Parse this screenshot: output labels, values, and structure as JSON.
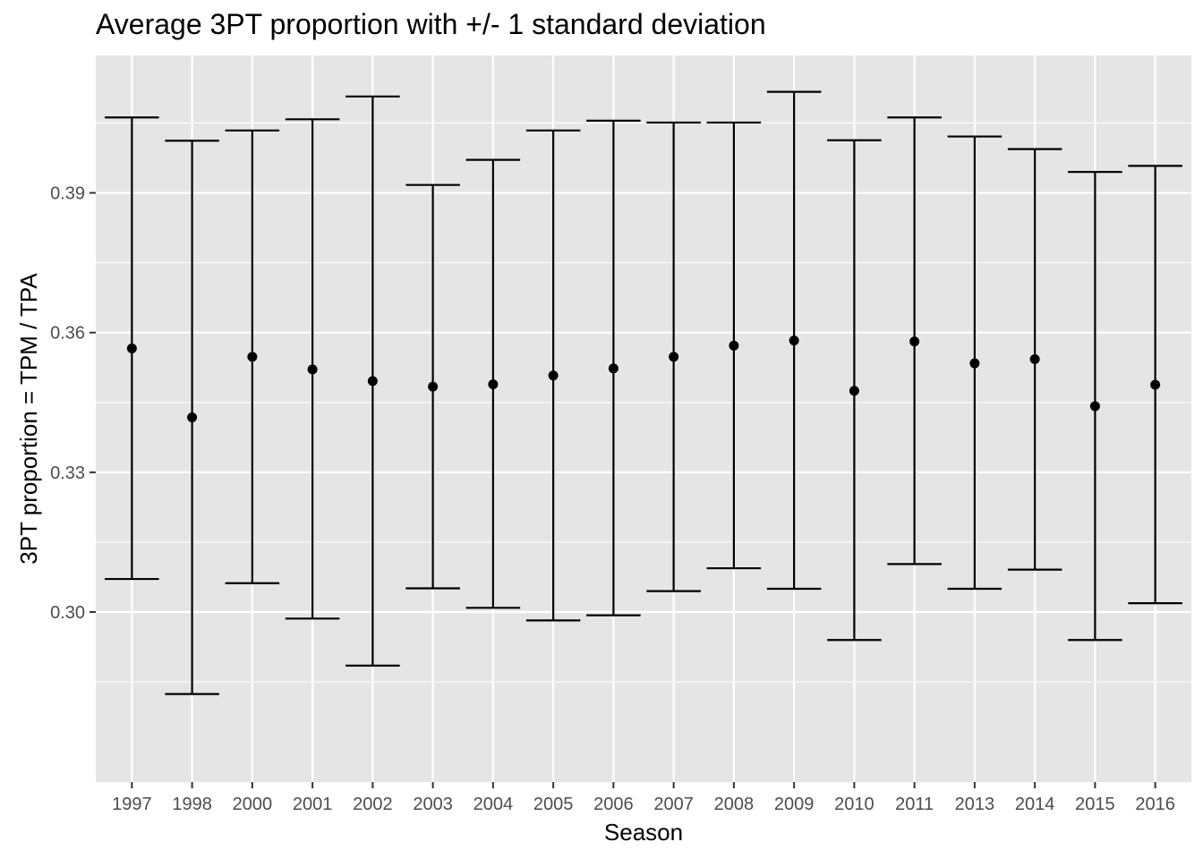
{
  "chart_data": {
    "type": "errorbar",
    "title": "Average 3PT proportion with +/- 1 standard deviation",
    "xlabel": "Season",
    "ylabel": "3PT proportion = TPM / TPA",
    "ylim": [
      0.2635,
      0.4195
    ],
    "y_ticks": [
      "0.30",
      "0.33",
      "0.36",
      "0.39"
    ],
    "y_tick_values": [
      0.3,
      0.33,
      0.36,
      0.39
    ],
    "grid": true,
    "categories": [
      "1997",
      "1998",
      "2000",
      "2001",
      "2002",
      "2003",
      "2004",
      "2005",
      "2006",
      "2007",
      "2008",
      "2009",
      "2010",
      "2011",
      "2013",
      "2014",
      "2015",
      "2016"
    ],
    "series": [
      {
        "mean": [
          0.3566,
          0.3418,
          0.3548,
          0.3521,
          0.3496,
          0.3484,
          0.3489,
          0.3508,
          0.3523,
          0.3548,
          0.3572,
          0.3583,
          0.3475,
          0.3581,
          0.3534,
          0.3543,
          0.3442,
          0.3488
        ],
        "lower": [
          0.3071,
          0.2824,
          0.3062,
          0.2986,
          0.2885,
          0.3051,
          0.3009,
          0.2982,
          0.2993,
          0.3045,
          0.3094,
          0.305,
          0.294,
          0.3103,
          0.305,
          0.3091,
          0.294,
          0.3019
        ],
        "upper": [
          0.4062,
          0.4012,
          0.4034,
          0.4058,
          0.4107,
          0.3917,
          0.3971,
          0.4034,
          0.4055,
          0.4051,
          0.4051,
          0.4117,
          0.4013,
          0.4062,
          0.4021,
          0.3994,
          0.3945,
          0.3958
        ]
      }
    ],
    "colors": {
      "panel": "#e5e5e5",
      "grid": "#ffffff",
      "mark": "#000000",
      "tick_text": "#4d4d4d"
    }
  }
}
